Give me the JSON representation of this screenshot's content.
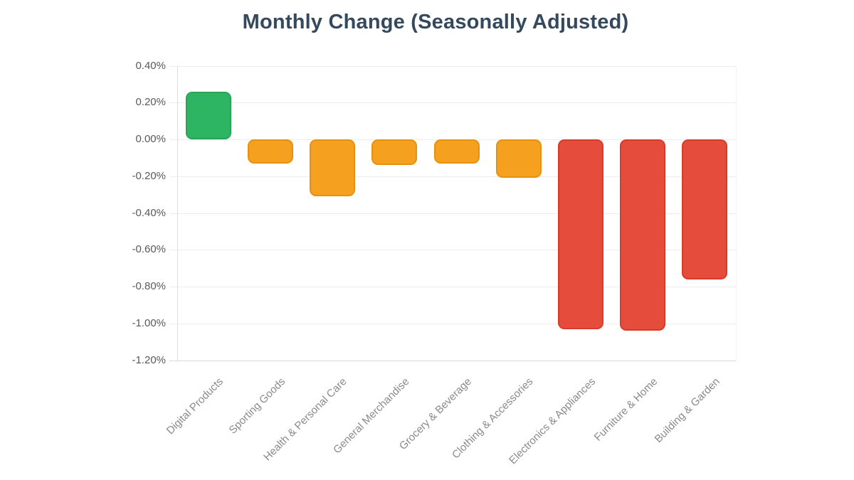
{
  "chart": {
    "title": "Monthly Change (Seasonally Adjusted)"
  },
  "chart_data": {
    "type": "bar",
    "title": "Monthly Change (Seasonally Adjusted)",
    "categories": [
      "Digital Products",
      "Sporting Goods",
      "Health & Personal Care",
      "General Merchandise",
      "Grocery & Beverage",
      "Clothing & Accessories",
      "Electronics & Appliances",
      "Furniture & Home",
      "Building & Garden"
    ],
    "series": [
      {
        "name": "Monthly Change (Seasonally Adjusted)",
        "values": [
          0.26,
          -0.13,
          -0.31,
          -0.14,
          -0.13,
          -0.21,
          -1.03,
          -1.04,
          -0.76
        ]
      }
    ],
    "unit": "%",
    "xlabel": "",
    "ylabel": "",
    "ylim": [
      -1.2,
      0.4
    ],
    "grid": "horizontal",
    "legend": "none",
    "x_label_rotation_deg": -45,
    "yticks": [
      {
        "value": 0.4,
        "label": "0.40%"
      },
      {
        "value": 0.2,
        "label": "0.20%"
      },
      {
        "value": 0.0,
        "label": "0.00%"
      },
      {
        "value": -0.2,
        "label": "-0.20%"
      },
      {
        "value": -0.4,
        "label": "-0.40%"
      },
      {
        "value": -0.6,
        "label": "-0.60%"
      },
      {
        "value": -0.8,
        "label": "-0.80%"
      },
      {
        "value": -1.0,
        "label": "-1.00%"
      },
      {
        "value": -1.2,
        "label": "-1.20%"
      }
    ],
    "bar_colors": [
      {
        "fill": "#2eb563",
        "border": "#28a457"
      },
      {
        "fill": "#f5a11f",
        "border": "#e5930f"
      },
      {
        "fill": "#f5a11f",
        "border": "#e5930f"
      },
      {
        "fill": "#f5a11f",
        "border": "#e5930f"
      },
      {
        "fill": "#f5a11f",
        "border": "#e5930f"
      },
      {
        "fill": "#f5a11f",
        "border": "#e5930f"
      },
      {
        "fill": "#e64c3c",
        "border": "#d63c2b"
      },
      {
        "fill": "#e64c3c",
        "border": "#d63c2b"
      },
      {
        "fill": "#e64c3c",
        "border": "#d63c2b"
      }
    ],
    "color_meaning": {
      "positive": "#2eb563",
      "mild_negative": "#f5a11f",
      "strong_negative": "#e64c3c"
    }
  }
}
